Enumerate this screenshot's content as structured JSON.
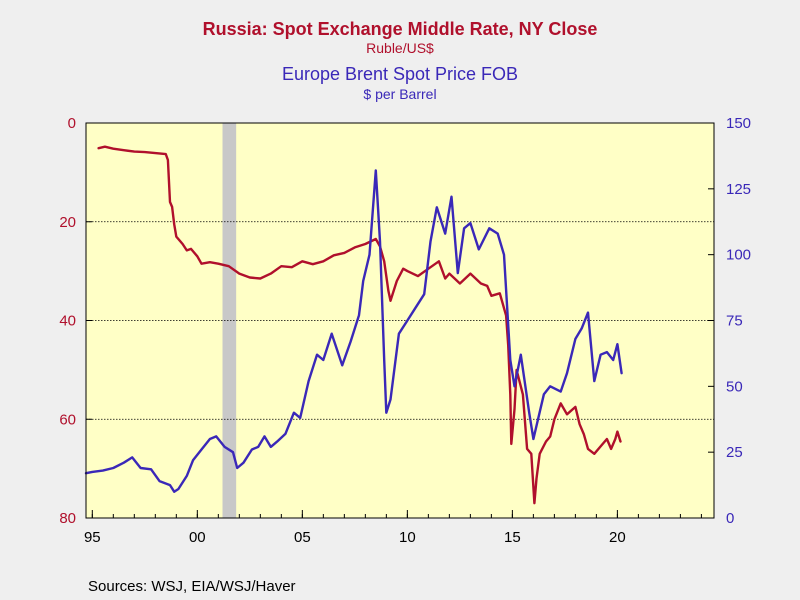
{
  "chart_data": {
    "type": "line",
    "titles": [
      {
        "text": "Russia: Spot Exchange Middle Rate, NY Close",
        "color": "#b0102c"
      },
      {
        "text": "Ruble/US$",
        "color": "#b0102c"
      },
      {
        "text": "Europe Brent Spot Price FOB",
        "color": "#3a28b8"
      },
      {
        "text": "$ per Barrel",
        "color": "#3a28b8"
      }
    ],
    "source": "Sources:  WSJ, EIA/WSJ/Haver",
    "x_axis": {
      "range": [
        1994.7,
        2024.6
      ],
      "ticks": [
        1995,
        2000,
        2005,
        2010,
        2015,
        2020
      ],
      "tick_labels": [
        "95",
        "00",
        "05",
        "10",
        "15",
        "20"
      ]
    },
    "left_axis": {
      "series": "ruble",
      "inverted": true,
      "range": [
        0,
        80
      ],
      "ticks": [
        0,
        20,
        40,
        60,
        80
      ],
      "tick_labels": [
        "0",
        "20",
        "40",
        "60",
        "80"
      ],
      "color": "#b0102c"
    },
    "right_axis": {
      "series": "brent",
      "range": [
        0,
        150
      ],
      "ticks": [
        0,
        25,
        50,
        75,
        100,
        125,
        150
      ],
      "tick_labels": [
        "0",
        "25",
        "50",
        "75",
        "100",
        "125",
        "150"
      ],
      "color": "#3a28b8"
    },
    "gridlines_left": [
      20,
      40,
      60
    ],
    "recession_band": [
      2001.2,
      2001.85
    ],
    "colors": {
      "plot_bg": "#ffffc6",
      "band": "#c8c8c8",
      "page_bg": "#efefef"
    },
    "series": [
      {
        "key": "ruble",
        "axis": "left",
        "color": "#b0102c",
        "points": [
          [
            1995.3,
            5.1
          ],
          [
            1995.6,
            4.8
          ],
          [
            1996.0,
            5.2
          ],
          [
            1996.5,
            5.5
          ],
          [
            1997.0,
            5.8
          ],
          [
            1997.5,
            5.9
          ],
          [
            1998.0,
            6.1
          ],
          [
            1998.5,
            6.3
          ],
          [
            1998.6,
            7.5
          ],
          [
            1998.7,
            16.0
          ],
          [
            1998.8,
            17.0
          ],
          [
            1998.9,
            20.5
          ],
          [
            1999.0,
            23.0
          ],
          [
            1999.3,
            24.5
          ],
          [
            1999.5,
            25.8
          ],
          [
            1999.7,
            25.5
          ],
          [
            2000.0,
            27.0
          ],
          [
            2000.2,
            28.5
          ],
          [
            2000.6,
            28.2
          ],
          [
            2001.0,
            28.5
          ],
          [
            2001.5,
            29.0
          ],
          [
            2002.0,
            30.5
          ],
          [
            2002.5,
            31.3
          ],
          [
            2003.0,
            31.5
          ],
          [
            2003.5,
            30.5
          ],
          [
            2004.0,
            29.0
          ],
          [
            2004.5,
            29.2
          ],
          [
            2005.0,
            28.0
          ],
          [
            2005.5,
            28.6
          ],
          [
            2006.0,
            28.0
          ],
          [
            2006.5,
            26.8
          ],
          [
            2007.0,
            26.3
          ],
          [
            2007.5,
            25.2
          ],
          [
            2008.0,
            24.5
          ],
          [
            2008.5,
            23.5
          ],
          [
            2008.7,
            25.0
          ],
          [
            2008.9,
            28.0
          ],
          [
            2009.1,
            34.0
          ],
          [
            2009.2,
            36.0
          ],
          [
            2009.5,
            32.0
          ],
          [
            2009.8,
            29.5
          ],
          [
            2010.0,
            30.0
          ],
          [
            2010.5,
            31.0
          ],
          [
            2011.0,
            29.5
          ],
          [
            2011.5,
            28.0
          ],
          [
            2011.8,
            31.5
          ],
          [
            2012.0,
            30.5
          ],
          [
            2012.5,
            32.5
          ],
          [
            2013.0,
            30.5
          ],
          [
            2013.5,
            32.5
          ],
          [
            2013.8,
            33.0
          ],
          [
            2014.0,
            35.0
          ],
          [
            2014.4,
            34.5
          ],
          [
            2014.7,
            39.0
          ],
          [
            2014.8,
            45.0
          ],
          [
            2014.9,
            55.0
          ],
          [
            2014.95,
            65.0
          ],
          [
            2015.1,
            58.0
          ],
          [
            2015.2,
            50.0
          ],
          [
            2015.5,
            55.0
          ],
          [
            2015.7,
            66.0
          ],
          [
            2015.9,
            67.0
          ],
          [
            2016.05,
            77.0
          ],
          [
            2016.15,
            72.0
          ],
          [
            2016.3,
            67.0
          ],
          [
            2016.6,
            64.5
          ],
          [
            2016.8,
            63.5
          ],
          [
            2017.0,
            60.0
          ],
          [
            2017.3,
            56.8
          ],
          [
            2017.6,
            59.0
          ],
          [
            2018.0,
            57.5
          ],
          [
            2018.2,
            61.0
          ],
          [
            2018.4,
            63.0
          ],
          [
            2018.6,
            66.0
          ],
          [
            2018.9,
            67.0
          ],
          [
            2019.2,
            65.5
          ],
          [
            2019.5,
            64.0
          ],
          [
            2019.7,
            66.0
          ],
          [
            2019.9,
            64.0
          ],
          [
            2020.0,
            62.5
          ],
          [
            2020.15,
            64.5
          ]
        ]
      },
      {
        "key": "brent",
        "axis": "right",
        "color": "#3a28b8",
        "points": [
          [
            1994.7,
            17
          ],
          [
            1995.0,
            17.5
          ],
          [
            1995.5,
            18
          ],
          [
            1996.0,
            19
          ],
          [
            1996.5,
            21
          ],
          [
            1996.9,
            23
          ],
          [
            1997.3,
            19
          ],
          [
            1997.8,
            18.5
          ],
          [
            1998.2,
            14
          ],
          [
            1998.7,
            12.5
          ],
          [
            1998.9,
            10
          ],
          [
            1999.1,
            11
          ],
          [
            1999.5,
            16
          ],
          [
            1999.8,
            22
          ],
          [
            2000.2,
            26
          ],
          [
            2000.6,
            30
          ],
          [
            2000.9,
            31
          ],
          [
            2001.3,
            27
          ],
          [
            2001.7,
            25
          ],
          [
            2001.9,
            19
          ],
          [
            2002.2,
            21
          ],
          [
            2002.6,
            26
          ],
          [
            2002.9,
            27
          ],
          [
            2003.2,
            31
          ],
          [
            2003.5,
            27
          ],
          [
            2003.8,
            29
          ],
          [
            2004.2,
            32
          ],
          [
            2004.6,
            40
          ],
          [
            2004.9,
            38
          ],
          [
            2005.3,
            52
          ],
          [
            2005.7,
            62
          ],
          [
            2006.0,
            60
          ],
          [
            2006.4,
            70
          ],
          [
            2006.9,
            58
          ],
          [
            2007.3,
            67
          ],
          [
            2007.7,
            77
          ],
          [
            2007.9,
            90
          ],
          [
            2008.2,
            100
          ],
          [
            2008.5,
            132
          ],
          [
            2008.7,
            105
          ],
          [
            2008.9,
            60
          ],
          [
            2009.0,
            40
          ],
          [
            2009.2,
            45
          ],
          [
            2009.6,
            70
          ],
          [
            2010.0,
            75
          ],
          [
            2010.4,
            80
          ],
          [
            2010.8,
            85
          ],
          [
            2011.1,
            105
          ],
          [
            2011.4,
            118
          ],
          [
            2011.8,
            108
          ],
          [
            2012.1,
            122
          ],
          [
            2012.4,
            93
          ],
          [
            2012.7,
            110
          ],
          [
            2013.0,
            112
          ],
          [
            2013.4,
            102
          ],
          [
            2013.9,
            110
          ],
          [
            2014.3,
            108
          ],
          [
            2014.6,
            100
          ],
          [
            2014.9,
            60
          ],
          [
            2015.1,
            50
          ],
          [
            2015.4,
            62
          ],
          [
            2015.8,
            40
          ],
          [
            2016.0,
            30
          ],
          [
            2016.5,
            47
          ],
          [
            2016.8,
            50
          ],
          [
            2017.3,
            48
          ],
          [
            2017.6,
            55
          ],
          [
            2018.0,
            68
          ],
          [
            2018.3,
            72
          ],
          [
            2018.6,
            78
          ],
          [
            2018.9,
            52
          ],
          [
            2019.2,
            62
          ],
          [
            2019.5,
            63
          ],
          [
            2019.8,
            60
          ],
          [
            2020.0,
            66
          ],
          [
            2020.2,
            55
          ]
        ]
      }
    ]
  }
}
